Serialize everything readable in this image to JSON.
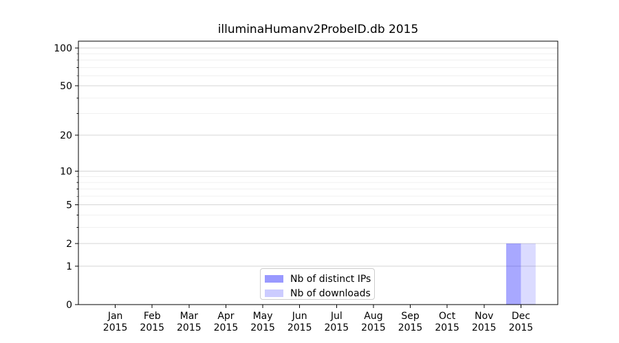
{
  "chart_data": {
    "type": "bar",
    "title": "illuminaHumanv2ProbeID.db 2015",
    "categories": [
      "Jan",
      "Feb",
      "Mar",
      "Apr",
      "May",
      "Jun",
      "Jul",
      "Aug",
      "Sep",
      "Oct",
      "Nov",
      "Dec"
    ],
    "category_year": "2015",
    "series": [
      {
        "name": "Nb of distinct IPs",
        "color": "#0000ff",
        "alpha": 0.34,
        "values": [
          0,
          0,
          0,
          0,
          0,
          0,
          0,
          0,
          0,
          0,
          0,
          2
        ]
      },
      {
        "name": "Nb of downloads",
        "color": "#0000ff",
        "alpha": 0.14,
        "values": [
          0,
          0,
          0,
          0,
          0,
          0,
          0,
          0,
          0,
          0,
          0,
          2
        ]
      }
    ],
    "yscale": "log1p",
    "ylim": [
      0,
      113
    ],
    "yticks_major": [
      0,
      1,
      2,
      5,
      10,
      20,
      50,
      100
    ],
    "yticks_minor": [
      3,
      4,
      6,
      7,
      8,
      9,
      30,
      40,
      60,
      70,
      80,
      90
    ],
    "grid": true,
    "legend_position": "lower center",
    "colors": {
      "spine": "#000000",
      "text": "#000000",
      "major_grid": "#d6d6d6",
      "minor_grid": "#f0f0f0"
    }
  }
}
